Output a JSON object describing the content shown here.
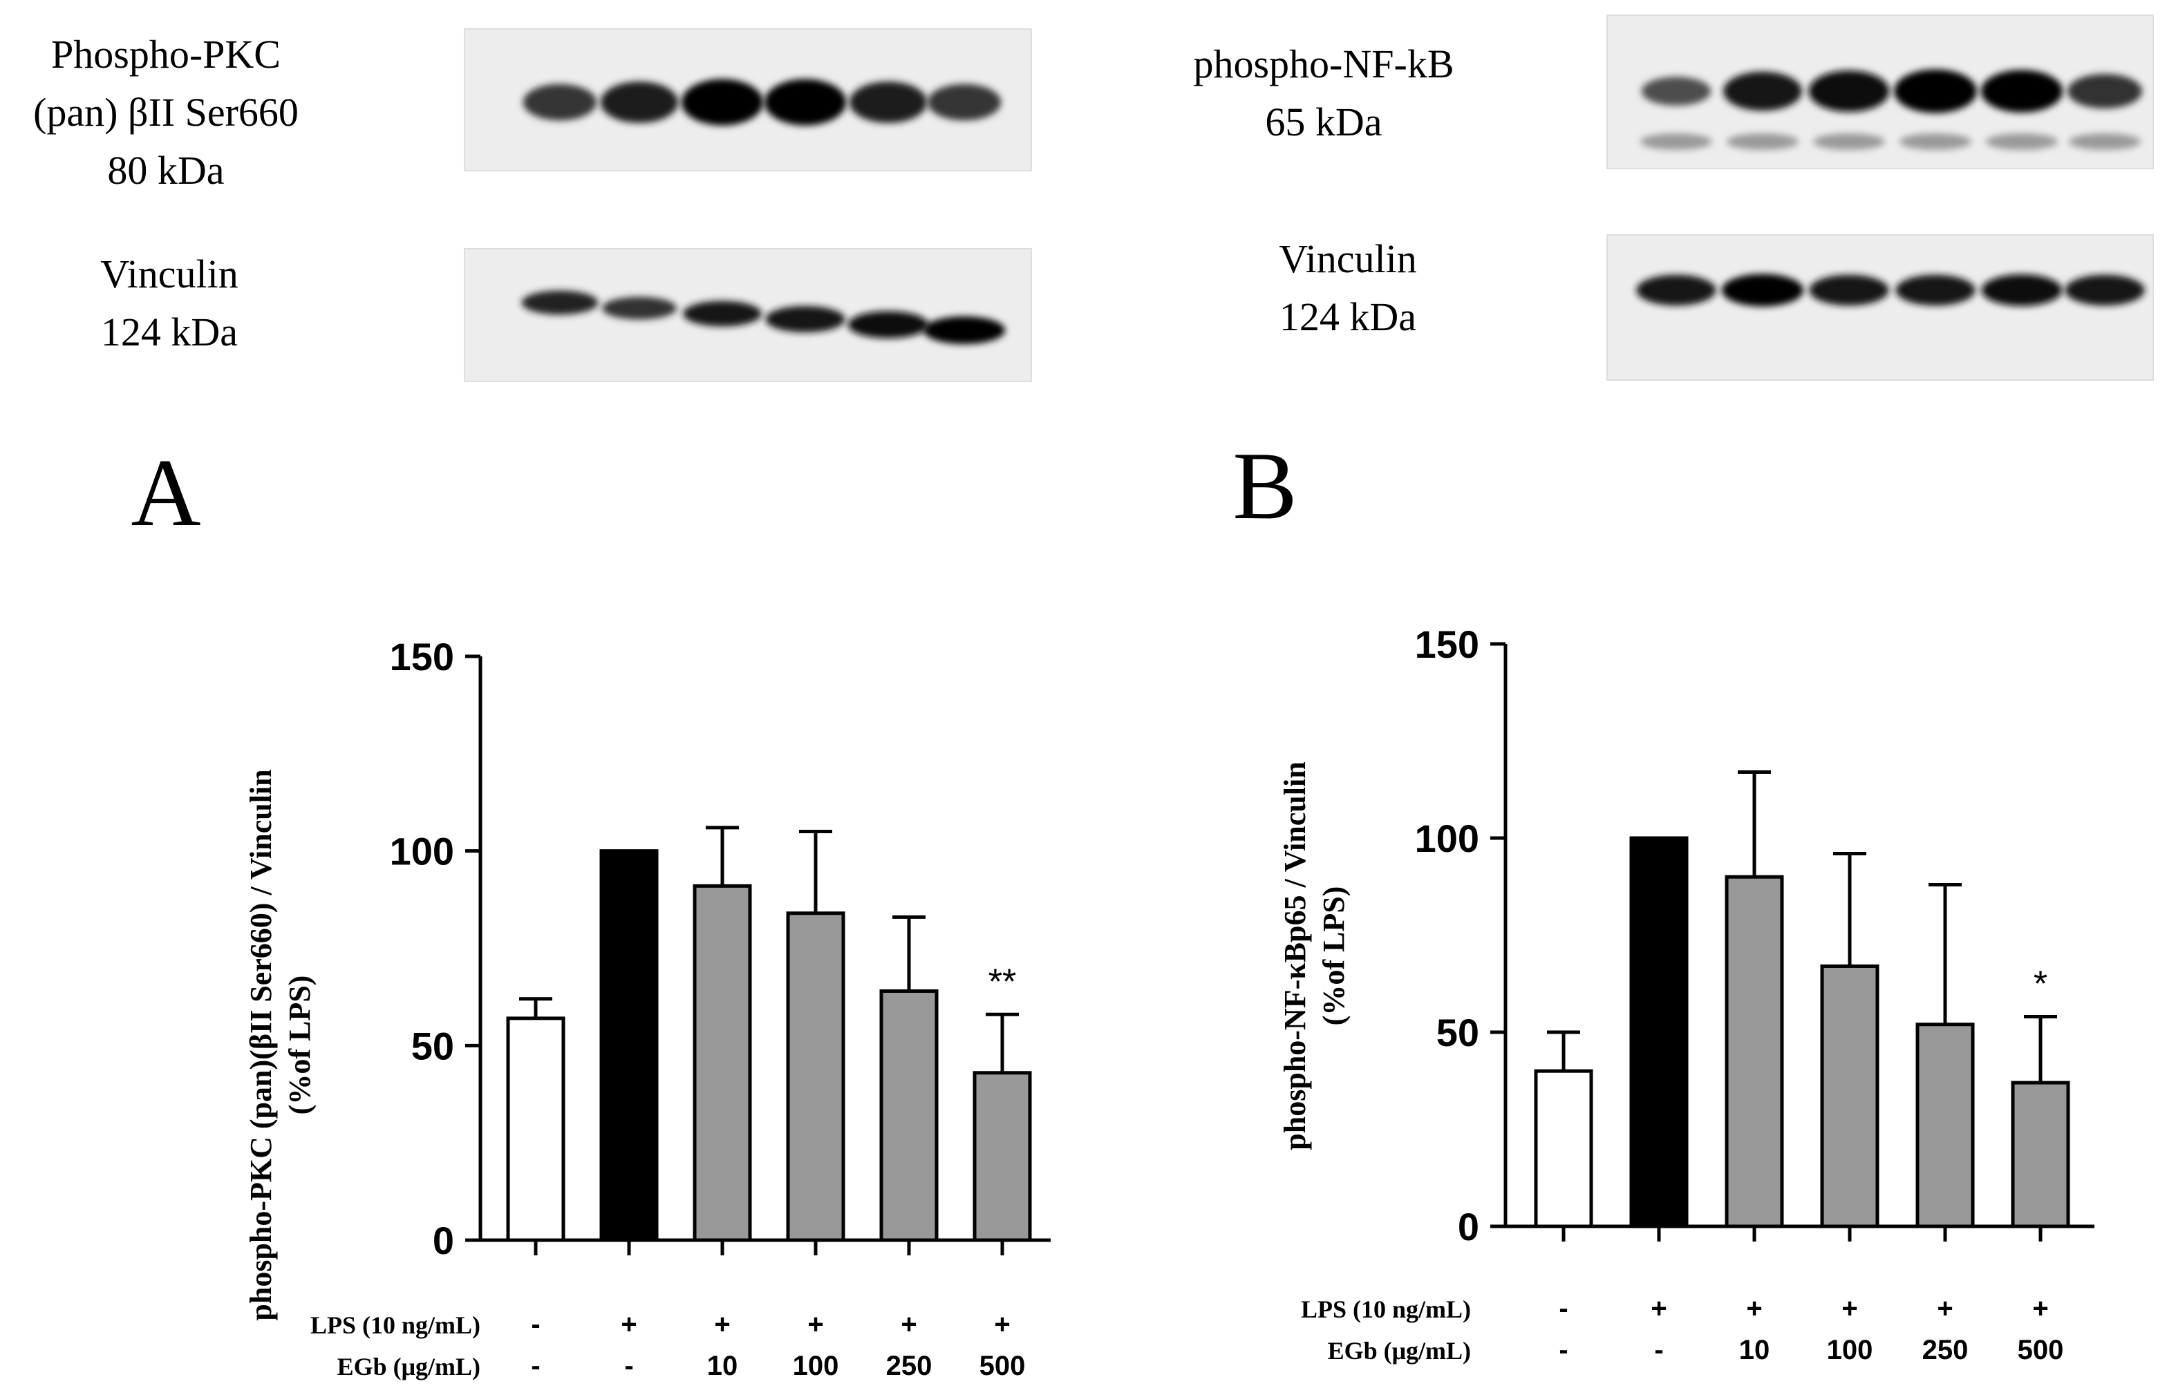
{
  "blots": {
    "left": {
      "top_label": [
        "Phospho-PKC",
        "(pan) βII Ser660",
        "80  kDa"
      ],
      "bottom_label": [
        "Vinculin",
        "124 kDa"
      ],
      "top_band_intensity": [
        0.55,
        0.75,
        0.95,
        0.95,
        0.75,
        0.55
      ],
      "bottom_band_intensity": [
        0.7,
        0.6,
        0.8,
        0.85,
        0.9,
        0.95
      ]
    },
    "right": {
      "top_label": [
        "phospho-NF-kB",
        "65 kDa"
      ],
      "bottom_label": [
        "Vinculin",
        "124 kDa"
      ],
      "top_band_intensity": [
        0.35,
        0.8,
        0.9,
        1.0,
        0.95,
        0.6
      ],
      "bottom_band_intensity": [
        0.85,
        0.95,
        0.85,
        0.85,
        0.9,
        0.85
      ]
    }
  },
  "chart_data": [
    {
      "panel_label": "A",
      "type": "bar",
      "ylabel": [
        "phospho-PKC (pan)(βII Ser660) / Vinculin",
        "(%of LPS)"
      ],
      "ylim": [
        0,
        150
      ],
      "yticks": [
        "0",
        "50",
        "100",
        "150"
      ],
      "treatments": [
        {
          "name": "LPS (10 ng/mL)",
          "values": [
            "-",
            "+",
            "+",
            "+",
            "+",
            "+"
          ]
        },
        {
          "name": "EGb (μg/mL)",
          "values": [
            "-",
            "-",
            "10",
            "100",
            "250",
            "500"
          ]
        }
      ],
      "values": [
        57,
        100,
        91,
        84,
        64,
        43
      ],
      "errors": [
        5,
        0,
        15,
        21,
        19,
        15
      ],
      "bar_colors": [
        "#ffffff",
        "#000000",
        "#999999",
        "#999999",
        "#999999",
        "#999999"
      ],
      "significance": [
        "",
        "",
        "",
        "",
        "",
        "**"
      ]
    },
    {
      "panel_label": "B",
      "type": "bar",
      "ylabel": [
        "phospho-NF-κBp65 / Vinculin",
        "(%of LPS)"
      ],
      "ylim": [
        0,
        150
      ],
      "yticks": [
        "0",
        "50",
        "100",
        "150"
      ],
      "treatments": [
        {
          "name": "LPS (10 ng/mL)",
          "values": [
            "-",
            "+",
            "+",
            "+",
            "+",
            "+"
          ]
        },
        {
          "name": "EGb (μg/mL)",
          "values": [
            "-",
            "-",
            "10",
            "100",
            "250",
            "500"
          ]
        }
      ],
      "values": [
        40,
        100,
        90,
        67,
        52,
        37
      ],
      "errors": [
        10,
        0,
        27,
        29,
        36,
        17
      ],
      "bar_colors": [
        "#ffffff",
        "#000000",
        "#999999",
        "#999999",
        "#999999",
        "#999999"
      ],
      "significance": [
        "",
        "",
        "",
        "",
        "",
        "*"
      ]
    }
  ]
}
